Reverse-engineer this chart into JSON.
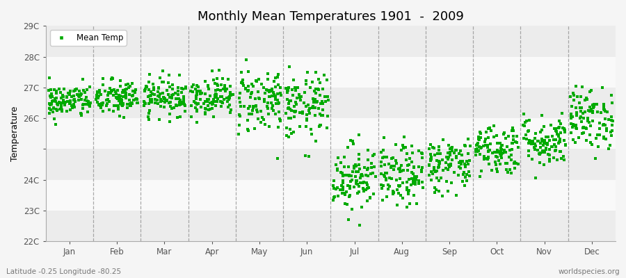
{
  "title": "Monthly Mean Temperatures 1901  -  2009",
  "ylabel": "Temperature",
  "xlabel_bottom_left": "Latitude -0.25 Longitude -80.25",
  "xlabel_bottom_right": "worldspecies.org",
  "legend_label": "Mean Temp",
  "ylim": [
    22.0,
    29.0
  ],
  "yticks": [
    22,
    23,
    24,
    25,
    26,
    27,
    28,
    29
  ],
  "ytick_labels": [
    "22C",
    "23C",
    "24C",
    "",
    "26C",
    "27C",
    "28C",
    "29C"
  ],
  "month_names": [
    "Jan",
    "Feb",
    "Mar",
    "Apr",
    "May",
    "Jun",
    "Jul",
    "Aug",
    "Sep",
    "Oct",
    "Nov",
    "Dec"
  ],
  "dot_color": "#00aa00",
  "dot_size": 5,
  "marker": "s",
  "background_color": "#f5f5f5",
  "band_colors": [
    "#ececec",
    "#f9f9f9"
  ],
  "dashed_line_color": "#888888",
  "title_fontsize": 13,
  "axis_label_fontsize": 9,
  "tick_fontsize": 8.5,
  "monthly_means": [
    26.55,
    26.65,
    26.7,
    26.72,
    26.6,
    26.35,
    24.1,
    24.1,
    24.5,
    25.0,
    25.25,
    26.0
  ],
  "monthly_std": [
    0.28,
    0.3,
    0.3,
    0.32,
    0.55,
    0.55,
    0.55,
    0.5,
    0.45,
    0.42,
    0.42,
    0.5
  ],
  "n_years": 109,
  "random_seed": 42
}
